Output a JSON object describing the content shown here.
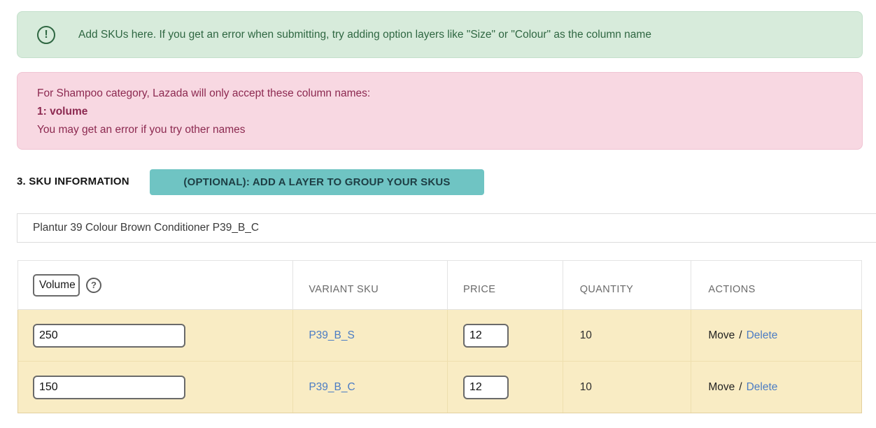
{
  "colors": {
    "info_bg": "#d7ebdb",
    "info_text": "#2f6742",
    "warn_bg": "#f8d8e2",
    "warn_text": "#8c2950",
    "btn_bg": "#6fc4c3",
    "btn_text": "#1d3e44",
    "row_bg": "#f9ecc4",
    "link": "#4b7cc4"
  },
  "info_banner": {
    "icon_glyph": "!",
    "text": "Add SKUs here. If you get an error when submitting, try adding option layers like \"Size\" or \"Colour\" as the column name"
  },
  "warning_banner": {
    "line1": "For Shampoo category, Lazada will only accept these column names:",
    "line2": "1: volume",
    "line3": "You may get an error if you try other names"
  },
  "section": {
    "title": "3. SKU INFORMATION",
    "button_label": "(OPTIONAL): ADD A LAYER TO GROUP YOUR SKUS"
  },
  "product": {
    "name": "Plantur 39 Colour Brown Conditioner P39_B_C"
  },
  "sku_table": {
    "option_column": {
      "value": "Volume",
      "help_glyph": "?"
    },
    "headers": [
      "VARIANT SKU",
      "PRICE",
      "QUANTITY",
      "ACTIONS"
    ],
    "rows": [
      {
        "option_value": "250",
        "variant_sku": "P39_B_S",
        "price": "12",
        "quantity": "10",
        "move_label": "Move",
        "separator": "/",
        "delete_label": "Delete"
      },
      {
        "option_value": "150",
        "variant_sku": "P39_B_C",
        "price": "12",
        "quantity": "10",
        "move_label": "Move",
        "separator": "/",
        "delete_label": "Delete"
      }
    ]
  }
}
